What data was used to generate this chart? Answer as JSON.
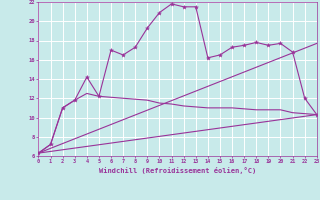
{
  "xlabel": "Windchill (Refroidissement éolien,°C)",
  "bg_color": "#c8eaea",
  "line_color": "#993399",
  "grid_color": "#ffffff",
  "xmin": 0,
  "xmax": 23,
  "ymin": 6,
  "ymax": 22,
  "series": [
    {
      "x": [
        0,
        1,
        2,
        3,
        4,
        5,
        6,
        7,
        8,
        9,
        10,
        11,
        12,
        13,
        14,
        15,
        16,
        17,
        18,
        19,
        20,
        21,
        22,
        23
      ],
      "y": [
        6.3,
        7.2,
        11.0,
        11.8,
        14.2,
        12.2,
        17.0,
        16.5,
        17.3,
        19.3,
        20.9,
        21.8,
        21.5,
        21.5,
        16.2,
        16.5,
        17.3,
        17.5,
        17.8,
        17.5,
        17.7,
        16.8,
        12.0,
        10.3
      ],
      "marker": true
    },
    {
      "x": [
        0,
        1,
        2,
        3,
        4,
        5,
        6,
        7,
        8,
        9,
        10,
        11,
        12,
        13,
        14,
        15,
        16,
        17,
        18,
        19,
        20,
        21,
        22,
        23
      ],
      "y": [
        6.3,
        7.2,
        11.0,
        11.8,
        12.5,
        12.2,
        12.1,
        12.0,
        11.9,
        11.8,
        11.5,
        11.4,
        11.2,
        11.1,
        11.0,
        11.0,
        11.0,
        10.9,
        10.8,
        10.8,
        10.8,
        10.5,
        10.4,
        10.3
      ],
      "marker": false
    },
    {
      "x": [
        0,
        23
      ],
      "y": [
        6.3,
        10.3
      ],
      "marker": false
    },
    {
      "x": [
        0,
        23
      ],
      "y": [
        6.3,
        17.7
      ],
      "marker": false
    }
  ]
}
